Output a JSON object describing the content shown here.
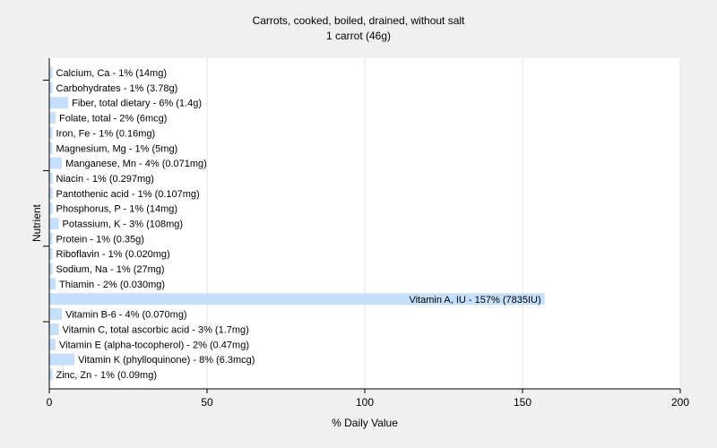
{
  "chart_data": {
    "type": "bar",
    "orientation": "horizontal",
    "title": "Carrots, cooked, boiled, drained, without salt",
    "subtitle": "1 carrot (46g)",
    "xlabel": "% Daily Value",
    "ylabel": "Nutrient",
    "xlim": [
      0,
      200
    ],
    "xticks": [
      0,
      50,
      100,
      150,
      200
    ],
    "grid": true,
    "bar_color": "#c6dffa",
    "categories": [
      "Calcium, Ca",
      "Carbohydrates",
      "Fiber, total dietary",
      "Folate, total",
      "Iron, Fe",
      "Magnesium, Mg",
      "Manganese, Mn",
      "Niacin",
      "Pantothenic acid",
      "Phosphorus, P",
      "Potassium, K",
      "Protein",
      "Riboflavin",
      "Sodium, Na",
      "Thiamin",
      "Vitamin A, IU",
      "Vitamin B-6",
      "Vitamin C, total ascorbic acid",
      "Vitamin E (alpha-tocopherol)",
      "Vitamin K (phylloquinone)",
      "Zinc, Zn"
    ],
    "values": [
      1,
      1,
      6,
      2,
      1,
      1,
      4,
      1,
      1,
      1,
      3,
      1,
      1,
      1,
      2,
      157,
      4,
      3,
      2,
      8,
      1
    ],
    "labels": [
      "Calcium, Ca - 1% (14mg)",
      "Carbohydrates - 1% (3.78g)",
      "Fiber, total dietary - 6% (1.4g)",
      "Folate, total - 2% (6mcg)",
      "Iron, Fe - 1% (0.16mg)",
      "Magnesium, Mg - 1% (5mg)",
      "Manganese, Mn - 4% (0.071mg)",
      "Niacin - 1% (0.297mg)",
      "Pantothenic acid - 1% (0.107mg)",
      "Phosphorus, P - 1% (14mg)",
      "Potassium, K - 3% (108mg)",
      "Protein - 1% (0.35g)",
      "Riboflavin - 1% (0.020mg)",
      "Sodium, Na - 1% (27mg)",
      "Thiamin - 2% (0.030mg)",
      "Vitamin A, IU - 157% (7835IU)",
      "Vitamin B-6 - 4% (0.070mg)",
      "Vitamin C, total ascorbic acid - 3% (1.7mg)",
      "Vitamin E (alpha-tocopherol) - 2% (0.47mg)",
      "Vitamin K (phylloquinone) - 8% (6.3mcg)",
      "Zinc, Zn - 1% (0.09mg)"
    ]
  }
}
